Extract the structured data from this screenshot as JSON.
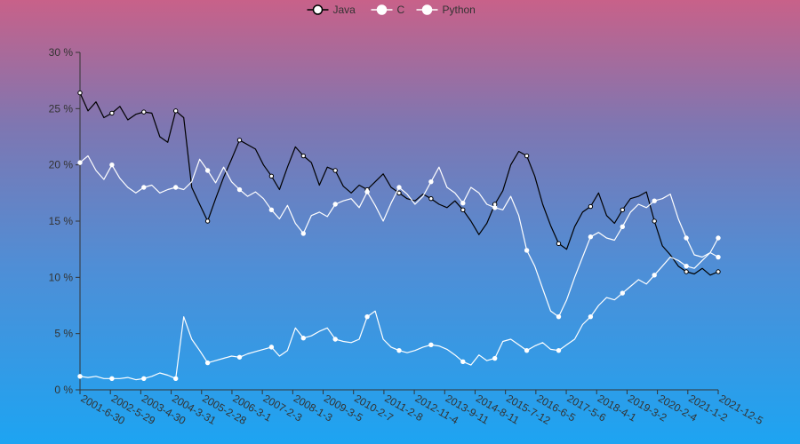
{
  "chart_data": {
    "type": "line",
    "title": "",
    "xlabel": "",
    "ylabel": "",
    "ylim": [
      0,
      30
    ],
    "y_ticks": [
      "0 %",
      "5 %",
      "10 %",
      "15 %",
      "20 %",
      "25 %",
      "30 %"
    ],
    "x_tick_labels": [
      "2001-6-30",
      "2002-5-29",
      "2003-4-30",
      "2004-3-31",
      "2005-2-28",
      "2006-3-1",
      "2007-2-3",
      "2008-1-3",
      "2009-3-5",
      "2010-2-7",
      "2011-2-8",
      "2012-11-4",
      "2013-9-11",
      "2014-8-11",
      "2015-7-12",
      "2016-6-5",
      "2017-5-6",
      "2018-4-1",
      "2019-3-2",
      "2020-2-4",
      "2021-1-2",
      "2021-12-5"
    ],
    "legend_position": "top-center",
    "grid": false,
    "series": [
      {
        "name": "Java",
        "color": "#000000",
        "values": [
          26.4,
          24.8,
          25.6,
          24.2,
          24.6,
          25.2,
          24.0,
          24.5,
          24.7,
          24.6,
          22.5,
          22.0,
          24.8,
          24.2,
          18.0,
          16.5,
          15.0,
          17.0,
          18.9,
          20.5,
          22.2,
          21.8,
          21.4,
          20.0,
          19.0,
          17.8,
          19.8,
          21.6,
          20.8,
          20.2,
          18.2,
          19.8,
          19.5,
          18.1,
          17.5,
          18.2,
          17.8,
          18.5,
          19.2,
          18.0,
          17.5,
          17.0,
          16.8,
          17.4,
          17.0,
          16.5,
          16.2,
          16.8,
          16.0,
          15.0,
          13.8,
          14.8,
          16.5,
          17.7,
          20.0,
          21.2,
          20.8,
          19.0,
          16.5,
          14.6,
          13.0,
          12.5,
          14.5,
          15.8,
          16.3,
          17.5,
          15.5,
          14.8,
          16.0,
          17.0,
          17.2,
          17.6,
          15.0,
          12.8,
          12.0,
          11.0,
          10.5,
          10.3,
          10.8,
          10.2,
          10.5
        ]
      },
      {
        "name": "C",
        "color": "#ffffff",
        "values": [
          20.2,
          20.8,
          19.5,
          18.7,
          20.0,
          18.8,
          18.0,
          17.5,
          18.0,
          18.2,
          17.5,
          17.8,
          18.0,
          17.8,
          18.5,
          20.5,
          19.5,
          18.4,
          19.8,
          18.5,
          17.8,
          17.2,
          17.6,
          17.0,
          16.0,
          15.2,
          16.4,
          14.8,
          13.9,
          15.5,
          15.8,
          15.4,
          16.5,
          16.8,
          17.0,
          16.2,
          17.6,
          16.4,
          15.0,
          16.6,
          18.0,
          17.4,
          16.5,
          17.2,
          18.5,
          19.8,
          18.0,
          17.5,
          16.6,
          18.0,
          17.5,
          16.5,
          16.2,
          16.0,
          17.2,
          15.5,
          12.4,
          11.0,
          9.0,
          7.0,
          6.5,
          8.0,
          10.0,
          11.8,
          13.6,
          14.0,
          13.5,
          13.3,
          14.5,
          15.8,
          16.5,
          16.2,
          16.8,
          17.0,
          17.4,
          15.2,
          13.5,
          12.0,
          11.8,
          12.2,
          11.8
        ]
      },
      {
        "name": "Python",
        "color": "#ffffff",
        "values": [
          1.2,
          1.1,
          1.2,
          1.0,
          1.0,
          1.0,
          1.1,
          0.9,
          1.0,
          1.2,
          1.5,
          1.3,
          1.0,
          6.5,
          4.5,
          3.5,
          2.4,
          2.6,
          2.8,
          3.0,
          2.9,
          3.2,
          3.4,
          3.6,
          3.8,
          3.0,
          3.5,
          5.5,
          4.6,
          4.8,
          5.2,
          5.5,
          4.5,
          4.3,
          4.2,
          4.5,
          6.5,
          7.0,
          4.5,
          3.8,
          3.5,
          3.3,
          3.5,
          3.8,
          4.0,
          3.9,
          3.6,
          3.1,
          2.5,
          2.2,
          3.1,
          2.6,
          2.8,
          4.3,
          4.5,
          4.0,
          3.5,
          3.9,
          4.2,
          3.6,
          3.5,
          4.0,
          4.5,
          5.8,
          6.5,
          7.5,
          8.2,
          8.0,
          8.6,
          9.2,
          9.8,
          9.4,
          10.2,
          11.0,
          11.8,
          11.5,
          11.0,
          10.8,
          11.5,
          12.2,
          13.5
        ]
      }
    ]
  }
}
